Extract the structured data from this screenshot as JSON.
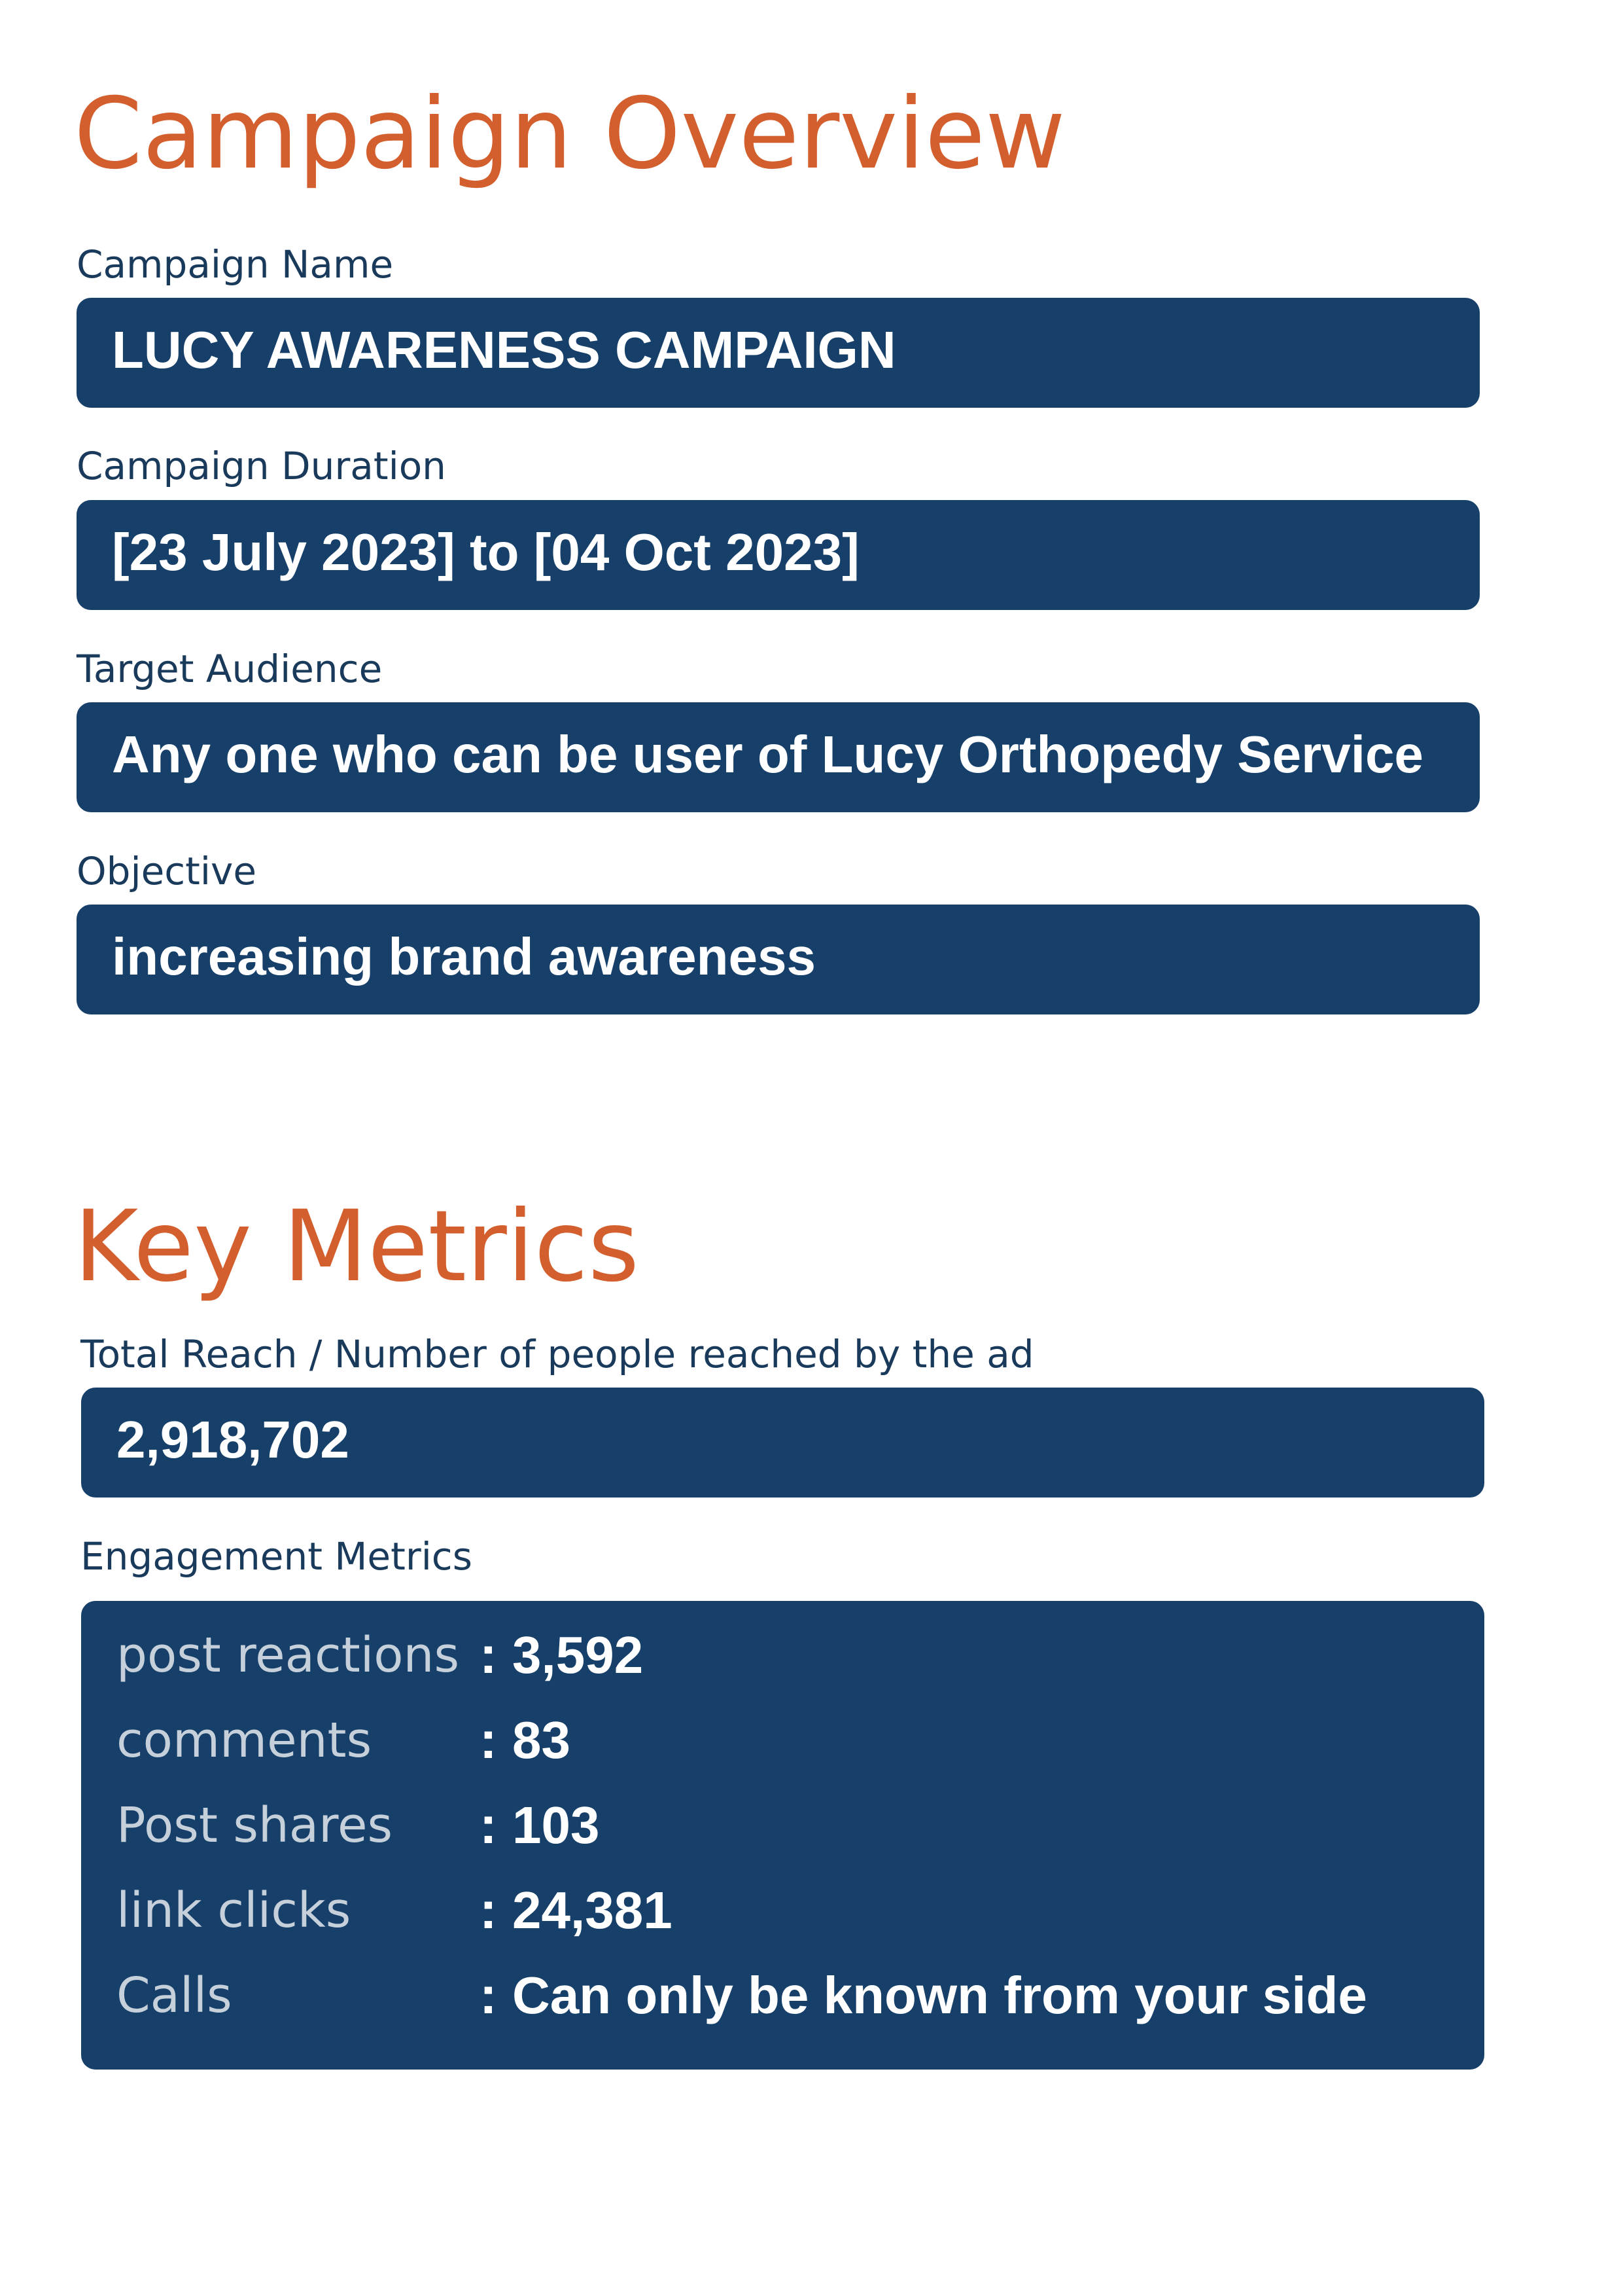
{
  "campaign_overview": {
    "title": "Campaign Overview",
    "fields": [
      {
        "label": "Campaign Name",
        "value": "LUCY AWARENESS CAMPAIGN"
      },
      {
        "label": "Campaign Duration",
        "value": "[23 July 2023] to [04 Oct 2023]"
      },
      {
        "label": "Target Audience",
        "value": "Any one who can be user of Lucy Orthopedy Service"
      },
      {
        "label": "Objective",
        "value": "increasing brand awareness"
      }
    ]
  },
  "key_metrics": {
    "title": "Key Metrics",
    "total_reach": {
      "label": "Total Reach / Number of people reached by the ad",
      "value": "2,918,702"
    },
    "engagement": {
      "label": "Engagement Metrics",
      "separator": ":",
      "rows": [
        {
          "label": "post reactions",
          "value": "3,592"
        },
        {
          "label": "comments",
          "value": "83"
        },
        {
          "label": "Post shares",
          "value": "103"
        },
        {
          "label": "link clicks",
          "value": "24,381"
        },
        {
          "label": "Calls",
          "value": "Can only be known from your side"
        }
      ]
    }
  },
  "colors": {
    "heading": "#d35f2e",
    "label": "#1a3a5c",
    "box": "#163f69",
    "metric_label": "#c6d0db",
    "value_text": "#ffffff"
  }
}
